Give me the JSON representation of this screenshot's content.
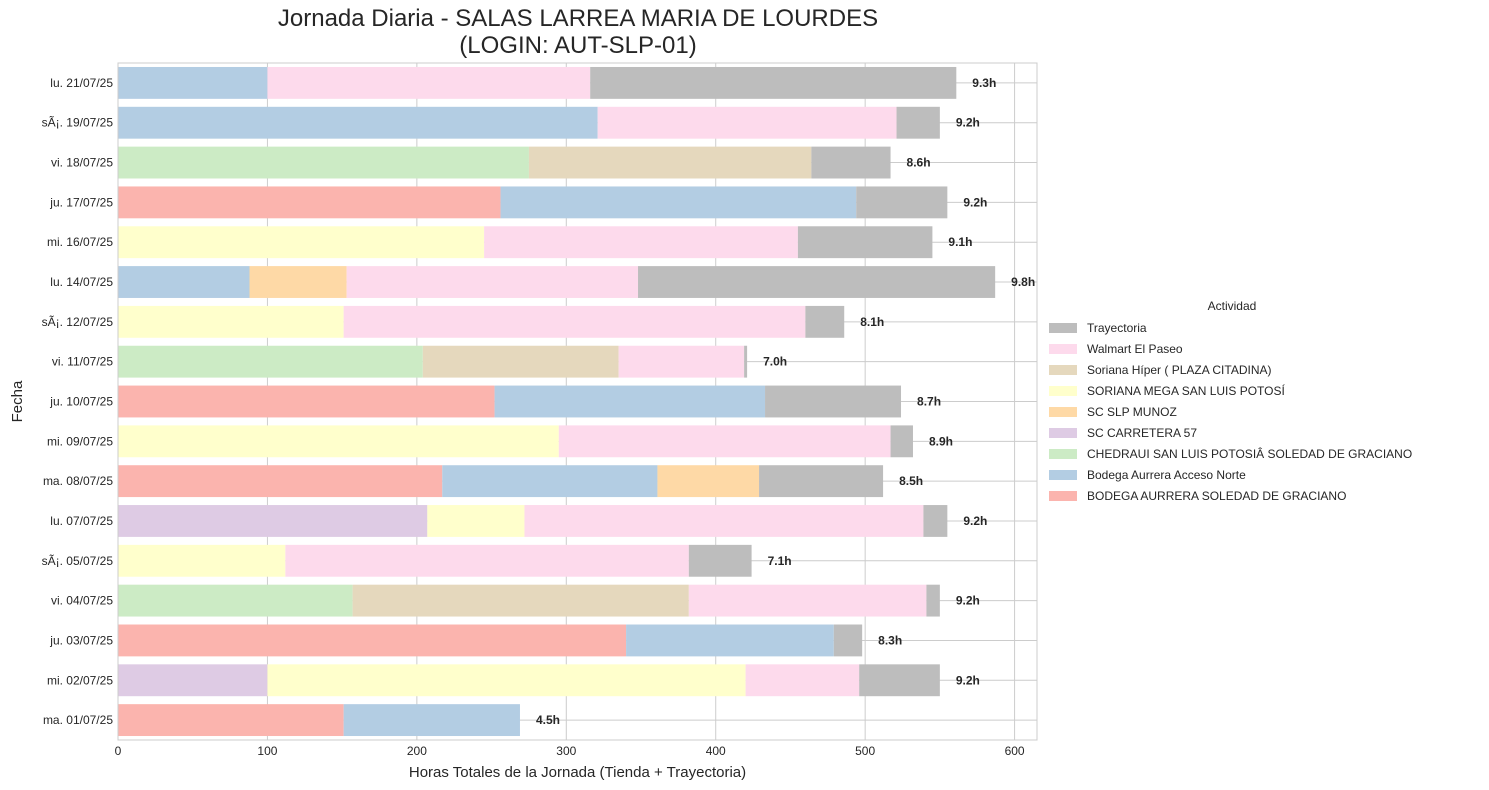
{
  "chart_data": {
    "type": "bar",
    "orientation": "horizontal",
    "stacked": true,
    "title": "Jornada Diaria - SALAS LARREA MARIA DE LOURDES\n(LOGIN: AUT-SLP-01)",
    "xlabel": "Horas Totales de la Jornada (Tienda + Trayectoria)",
    "ylabel": "Fecha",
    "xlim": [
      0,
      615
    ],
    "xticks": [
      0,
      100,
      200,
      300,
      400,
      500,
      600
    ],
    "grid": true,
    "legend_title": "Actividad",
    "legend_position": "right",
    "categories": [
      "lu. 21/07/25",
      "sÃ¡. 19/07/25",
      "vi. 18/07/25",
      "ju. 17/07/25",
      "mi. 16/07/25",
      "lu. 14/07/25",
      "sÃ¡. 12/07/25",
      "vi. 11/07/25",
      "ju. 10/07/25",
      "mi. 09/07/25",
      "ma. 08/07/25",
      "lu. 07/07/25",
      "sÃ¡. 05/07/25",
      "vi. 04/07/25",
      "ju. 03/07/25",
      "mi. 02/07/25",
      "ma. 01/07/25"
    ],
    "series": [
      {
        "name": "BODEGA AURRERA SOLEDAD DE GRACIANO",
        "color": "#fbb4ae",
        "values": [
          0,
          0,
          0,
          256,
          0,
          0,
          0,
          0,
          252,
          0,
          217,
          0,
          0,
          0,
          340,
          0,
          151
        ]
      },
      {
        "name": "Bodega Aurrera Acceso Norte",
        "color": "#b3cde3",
        "values": [
          100,
          321,
          0,
          238,
          0,
          88,
          0,
          0,
          181,
          0,
          144,
          0,
          0,
          0,
          139,
          0,
          118
        ]
      },
      {
        "name": "CHEDRAUI SAN LUIS POTOSIÂ SOLEDAD DE GRACIANO",
        "color": "#ccebc5",
        "values": [
          0,
          0,
          275,
          0,
          0,
          0,
          0,
          204,
          0,
          0,
          0,
          0,
          0,
          157,
          0,
          0,
          0
        ]
      },
      {
        "name": "SC CARRETERA 57",
        "color": "#decbe4",
        "values": [
          0,
          0,
          0,
          0,
          0,
          0,
          0,
          0,
          0,
          0,
          0,
          207,
          0,
          0,
          0,
          100,
          0
        ]
      },
      {
        "name": "SC SLP MUNOZ",
        "color": "#fed9a6",
        "values": [
          0,
          0,
          0,
          0,
          0,
          65,
          0,
          0,
          0,
          0,
          68,
          0,
          0,
          0,
          0,
          0,
          0
        ]
      },
      {
        "name": "SORIANA MEGA SAN LUIS POTOSÍ",
        "color": "#ffffcc",
        "values": [
          0,
          0,
          0,
          0,
          245,
          0,
          151,
          0,
          0,
          295,
          0,
          65,
          112,
          0,
          0,
          320,
          0
        ]
      },
      {
        "name": "Soriana Híper ( PLAZA CITADINA)",
        "color": "#e5d8bd",
        "values": [
          0,
          0,
          189,
          0,
          0,
          0,
          0,
          131,
          0,
          0,
          0,
          0,
          0,
          225,
          0,
          0,
          0
        ]
      },
      {
        "name": "Walmart El Paseo",
        "color": "#fddaec",
        "values": [
          216,
          200,
          0,
          0,
          210,
          195,
          309,
          84,
          0,
          222,
          0,
          267,
          270,
          159,
          0,
          76,
          0
        ]
      },
      {
        "name": "Trayectoria",
        "color": "#bdbdbd",
        "values": [
          245,
          29,
          53,
          61,
          90,
          239,
          26,
          2,
          91,
          15,
          83,
          16,
          42,
          9,
          19,
          54,
          0
        ]
      }
    ],
    "data_labels": [
      "9.3h",
      "9.2h",
      "8.6h",
      "9.2h",
      "9.1h",
      "9.8h",
      "8.1h",
      "7.0h",
      "8.7h",
      "8.9h",
      "8.5h",
      "9.2h",
      "7.1h",
      "9.2h",
      "8.3h",
      "9.2h",
      "4.5h"
    ]
  }
}
